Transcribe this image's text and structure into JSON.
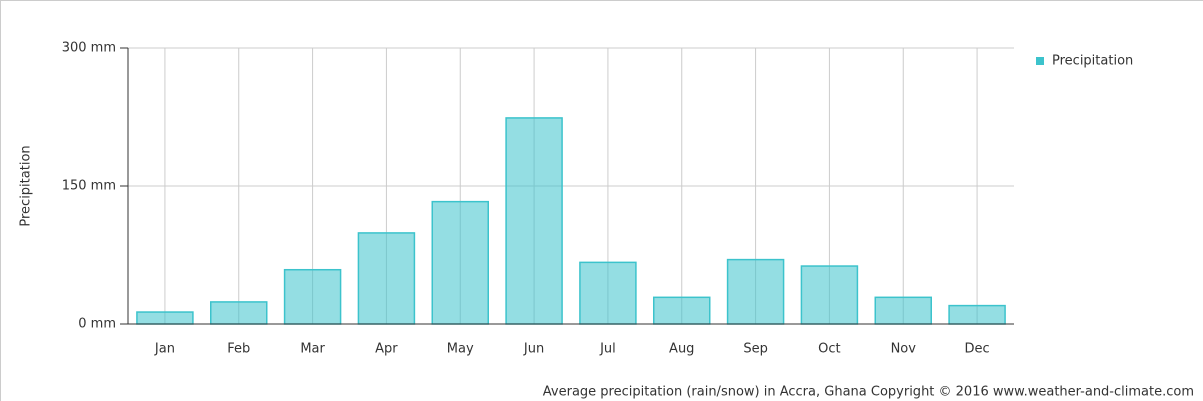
{
  "chart_data": {
    "type": "bar",
    "y_label": "Precipitation",
    "caption": "Average precipitation (rain/snow) in Accra, Ghana   Copyright © 2016 www.weather-and-climate.com",
    "categories": [
      "Jan",
      "Feb",
      "Mar",
      "Apr",
      "May",
      "Jun",
      "Jul",
      "Aug",
      "Sep",
      "Oct",
      "Nov",
      "Dec"
    ],
    "series": [
      {
        "name": "Precipitation",
        "color": "#3cc3cc",
        "values": [
          13,
          24,
          59,
          99,
          133,
          224,
          67,
          29,
          70,
          63,
          29,
          20
        ]
      }
    ],
    "ylim": [
      0,
      300
    ],
    "yticks": [
      {
        "value": 0,
        "label": "0 mm"
      },
      {
        "value": 150,
        "label": "150 mm"
      },
      {
        "value": 300,
        "label": "300 mm"
      }
    ],
    "grid": true,
    "legend": "top-right"
  }
}
